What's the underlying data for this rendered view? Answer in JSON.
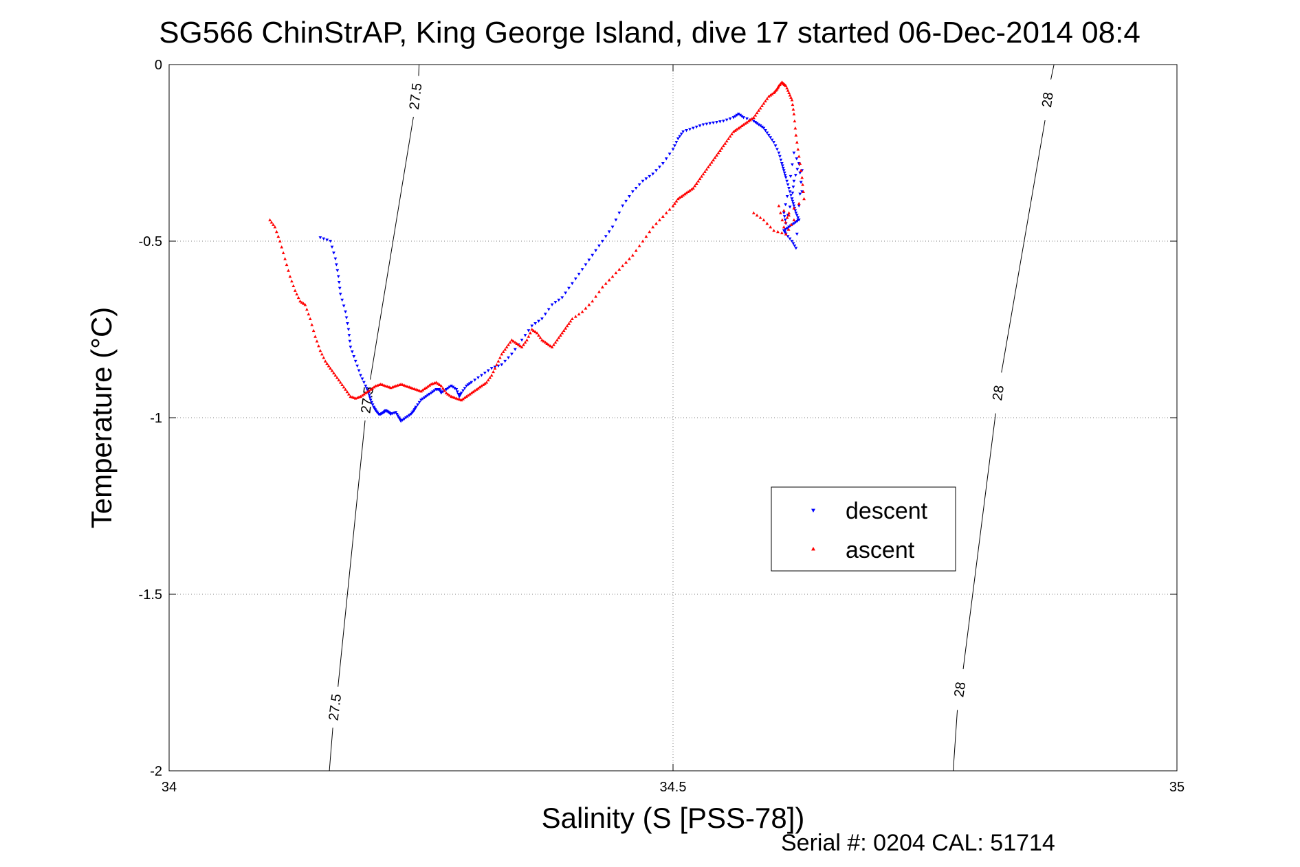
{
  "chart_data": {
    "type": "scatter",
    "title": "SG566 ChinStrAP, King George Island, dive 17 started 06-Dec-2014 08:4",
    "xlabel": "Salinity (S [PSS-78])",
    "ylabel": "Temperature (°C)",
    "xlim": [
      34,
      35
    ],
    "ylim": [
      -2,
      0
    ],
    "x_ticks": [
      "34",
      "34.5",
      "35"
    ],
    "y_ticks": [
      "0",
      "-0.5",
      "-1",
      "-1.5",
      "-2"
    ],
    "grid": true,
    "legend_position": "center-right",
    "isopycnals": [
      {
        "label": "27.5",
        "x_at_top": 34.248,
        "x_at_bottom": 34.159,
        "label_points": [
          [
            34.245,
            -0.09
          ],
          [
            34.197,
            -0.95
          ],
          [
            34.165,
            -1.82
          ]
        ]
      },
      {
        "label": "28",
        "x_at_top": 34.878,
        "x_at_bottom": 34.778,
        "label_points": [
          [
            34.872,
            -0.1
          ],
          [
            34.823,
            -0.93
          ],
          [
            34.785,
            -1.77
          ]
        ]
      }
    ],
    "series": [
      {
        "name": "descent",
        "color": "#0000ff",
        "marker": "triangle-down",
        "x": [
          34.15,
          34.16,
          34.165,
          34.168,
          34.17,
          34.175,
          34.178,
          34.18,
          34.185,
          34.19,
          34.195,
          34.198,
          34.2,
          34.203,
          34.205,
          34.208,
          34.21,
          34.213,
          34.215,
          34.218,
          34.22,
          34.225,
          34.228,
          34.23,
          34.235,
          34.24,
          34.243,
          34.245,
          34.25,
          34.255,
          34.26,
          34.265,
          34.268,
          34.27,
          34.275,
          34.28,
          34.285,
          34.288,
          34.29,
          34.295,
          34.3,
          34.31,
          34.32,
          34.33,
          34.34,
          34.35,
          34.36,
          34.37,
          34.38,
          34.39,
          34.4,
          34.41,
          34.42,
          34.43,
          34.44,
          34.45,
          34.46,
          34.47,
          34.48,
          34.49,
          34.5,
          34.505,
          34.51,
          34.52,
          34.53,
          34.54,
          34.55,
          34.56,
          34.565,
          34.57,
          34.58,
          34.585,
          34.59,
          34.595,
          34.6,
          34.605,
          34.608,
          34.61,
          34.612,
          34.615,
          34.618,
          34.62,
          34.622,
          34.625,
          34.62,
          34.615,
          34.61,
          34.612,
          34.618,
          34.622,
          34.625,
          34.628,
          34.62,
          34.615,
          34.61,
          34.612,
          34.618,
          34.62,
          34.625,
          34.628
        ],
        "y": [
          -0.49,
          -0.5,
          -0.55,
          -0.6,
          -0.65,
          -0.7,
          -0.75,
          -0.8,
          -0.84,
          -0.88,
          -0.91,
          -0.93,
          -0.95,
          -0.97,
          -0.98,
          -0.99,
          -0.99,
          -0.985,
          -0.98,
          -0.985,
          -0.99,
          -0.985,
          -1.0,
          -1.01,
          -1.0,
          -0.99,
          -0.98,
          -0.97,
          -0.95,
          -0.94,
          -0.93,
          -0.92,
          -0.92,
          -0.93,
          -0.92,
          -0.91,
          -0.92,
          -0.94,
          -0.93,
          -0.91,
          -0.9,
          -0.88,
          -0.86,
          -0.85,
          -0.82,
          -0.78,
          -0.74,
          -0.72,
          -0.68,
          -0.66,
          -0.62,
          -0.58,
          -0.54,
          -0.5,
          -0.46,
          -0.4,
          -0.36,
          -0.33,
          -0.31,
          -0.28,
          -0.24,
          -0.21,
          -0.19,
          -0.18,
          -0.17,
          -0.165,
          -0.16,
          -0.15,
          -0.14,
          -0.15,
          -0.16,
          -0.17,
          -0.18,
          -0.2,
          -0.22,
          -0.25,
          -0.28,
          -0.3,
          -0.32,
          -0.35,
          -0.38,
          -0.4,
          -0.42,
          -0.44,
          -0.45,
          -0.46,
          -0.47,
          -0.48,
          -0.5,
          -0.52,
          -0.4,
          -0.3,
          -0.25,
          -0.35,
          -0.42,
          -0.45,
          -0.38,
          -0.33,
          -0.28,
          -0.36
        ]
      },
      {
        "name": "ascent",
        "color": "#ff0000",
        "marker": "triangle-up",
        "x": [
          34.1,
          34.105,
          34.11,
          34.115,
          34.12,
          34.125,
          34.13,
          34.135,
          34.14,
          34.145,
          34.15,
          34.155,
          34.16,
          34.165,
          34.17,
          34.175,
          34.18,
          34.185,
          34.19,
          34.195,
          34.2,
          34.205,
          34.21,
          34.215,
          34.22,
          34.225,
          34.23,
          34.235,
          34.24,
          34.245,
          34.25,
          34.255,
          34.26,
          34.265,
          34.27,
          34.275,
          34.28,
          34.285,
          34.29,
          34.295,
          34.3,
          34.305,
          34.31,
          34.315,
          34.32,
          34.325,
          34.33,
          34.335,
          34.34,
          34.345,
          34.35,
          34.355,
          34.36,
          34.365,
          34.37,
          34.375,
          34.38,
          34.385,
          34.39,
          34.395,
          34.4,
          34.41,
          34.42,
          34.43,
          34.44,
          34.45,
          34.46,
          34.47,
          34.48,
          34.49,
          34.5,
          34.505,
          34.51,
          34.515,
          34.52,
          34.525,
          34.53,
          34.535,
          34.54,
          34.545,
          34.55,
          34.555,
          34.56,
          34.565,
          34.57,
          34.575,
          34.58,
          34.585,
          34.59,
          34.595,
          34.6,
          34.603,
          34.605,
          34.608,
          34.61,
          34.612,
          34.615,
          34.618,
          34.62,
          34.622,
          34.625,
          34.628,
          34.63,
          34.615,
          34.61,
          34.605,
          34.62,
          34.612,
          34.6,
          34.59,
          34.58
        ],
        "y": [
          -0.44,
          -0.46,
          -0.5,
          -0.55,
          -0.6,
          -0.64,
          -0.67,
          -0.68,
          -0.72,
          -0.77,
          -0.81,
          -0.84,
          -0.86,
          -0.88,
          -0.9,
          -0.92,
          -0.94,
          -0.945,
          -0.94,
          -0.93,
          -0.92,
          -0.91,
          -0.905,
          -0.91,
          -0.915,
          -0.91,
          -0.905,
          -0.91,
          -0.915,
          -0.92,
          -0.925,
          -0.915,
          -0.905,
          -0.9,
          -0.91,
          -0.93,
          -0.94,
          -0.945,
          -0.95,
          -0.94,
          -0.93,
          -0.92,
          -0.91,
          -0.9,
          -0.88,
          -0.85,
          -0.82,
          -0.8,
          -0.78,
          -0.79,
          -0.8,
          -0.78,
          -0.75,
          -0.76,
          -0.78,
          -0.79,
          -0.8,
          -0.78,
          -0.76,
          -0.74,
          -0.72,
          -0.7,
          -0.67,
          -0.63,
          -0.6,
          -0.57,
          -0.54,
          -0.5,
          -0.46,
          -0.43,
          -0.4,
          -0.38,
          -0.37,
          -0.36,
          -0.35,
          -0.33,
          -0.31,
          -0.29,
          -0.27,
          -0.25,
          -0.23,
          -0.21,
          -0.19,
          -0.18,
          -0.17,
          -0.16,
          -0.15,
          -0.13,
          -0.11,
          -0.09,
          -0.08,
          -0.07,
          -0.06,
          -0.05,
          -0.055,
          -0.06,
          -0.08,
          -0.1,
          -0.14,
          -0.2,
          -0.26,
          -0.32,
          -0.38,
          -0.42,
          -0.46,
          -0.4,
          -0.44,
          -0.48,
          -0.47,
          -0.44,
          -0.42
        ]
      }
    ]
  },
  "footer": {
    "serial": "Serial #: 0204  CAL: 51714"
  }
}
